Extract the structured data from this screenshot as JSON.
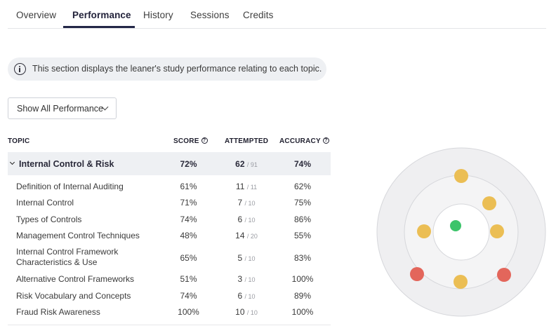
{
  "tabs": [
    {
      "label": "Overview"
    },
    {
      "label": "Performance"
    },
    {
      "label": "History"
    },
    {
      "label": "Sessions"
    },
    {
      "label": "Credits"
    }
  ],
  "active_tab": "Performance",
  "banner": {
    "icon": "info-icon",
    "text": "This section displays the leaner's study performance relating to each topic."
  },
  "filter": {
    "selected": "Show All Performance",
    "icon": "chevron-down-icon"
  },
  "table": {
    "headers": {
      "topic": "TOPIC",
      "score": "SCORE",
      "attempted": "ATTEMPTED",
      "accuracy": "ACCURACY"
    },
    "group": {
      "name": "Internal Control & Risk",
      "score": "72%",
      "attempted": "62",
      "total": "/ 91",
      "accuracy": "74%"
    },
    "rows": [
      {
        "topic": "Definition of Internal Auditing",
        "score": "61%",
        "attempted": "11",
        "total": "/ 11",
        "accuracy": "62%"
      },
      {
        "topic": "Internal Control",
        "score": "71%",
        "attempted": "7",
        "total": "/ 10",
        "accuracy": "75%"
      },
      {
        "topic": "Types of Controls",
        "score": "74%",
        "attempted": "6",
        "total": "/ 10",
        "accuracy": "86%"
      },
      {
        "topic": "Management Control Techniques",
        "score": "48%",
        "attempted": "14",
        "total": "/ 20",
        "accuracy": "55%"
      },
      {
        "topic": "Internal Control Framework Characteristics & Use",
        "score": "65%",
        "attempted": "5",
        "total": "/ 10",
        "accuracy": "83%"
      },
      {
        "topic": "Alternative Control Frameworks",
        "score": "51%",
        "attempted": "3",
        "total": "/ 10",
        "accuracy": "100%"
      },
      {
        "topic": "Risk Vocabulary and Concepts",
        "score": "74%",
        "attempted": "6",
        "total": "/ 10",
        "accuracy": "89%"
      },
      {
        "topic": "Fraud Risk Awareness",
        "score": "100%",
        "attempted": "10",
        "total": "/ 10",
        "accuracy": "100%"
      }
    ]
  },
  "target_chart": {
    "colors": {
      "green": "#3cc46a",
      "amber": "#ebbe54",
      "red": "#e3665b",
      "ring_outer": "#efeff1",
      "ring_mid": "#f4f4f5",
      "ring_inner": "#ffffff",
      "ring_stroke": "#d6d7db"
    },
    "markers": [
      {
        "ring": "center",
        "color": "green"
      },
      {
        "ring": "middle",
        "color": "amber"
      },
      {
        "ring": "middle",
        "color": "amber"
      },
      {
        "ring": "middle",
        "color": "amber"
      },
      {
        "ring": "middle",
        "color": "amber"
      },
      {
        "ring": "outer",
        "color": "amber"
      },
      {
        "ring": "outer",
        "color": "red"
      },
      {
        "ring": "outer",
        "color": "red"
      }
    ]
  }
}
